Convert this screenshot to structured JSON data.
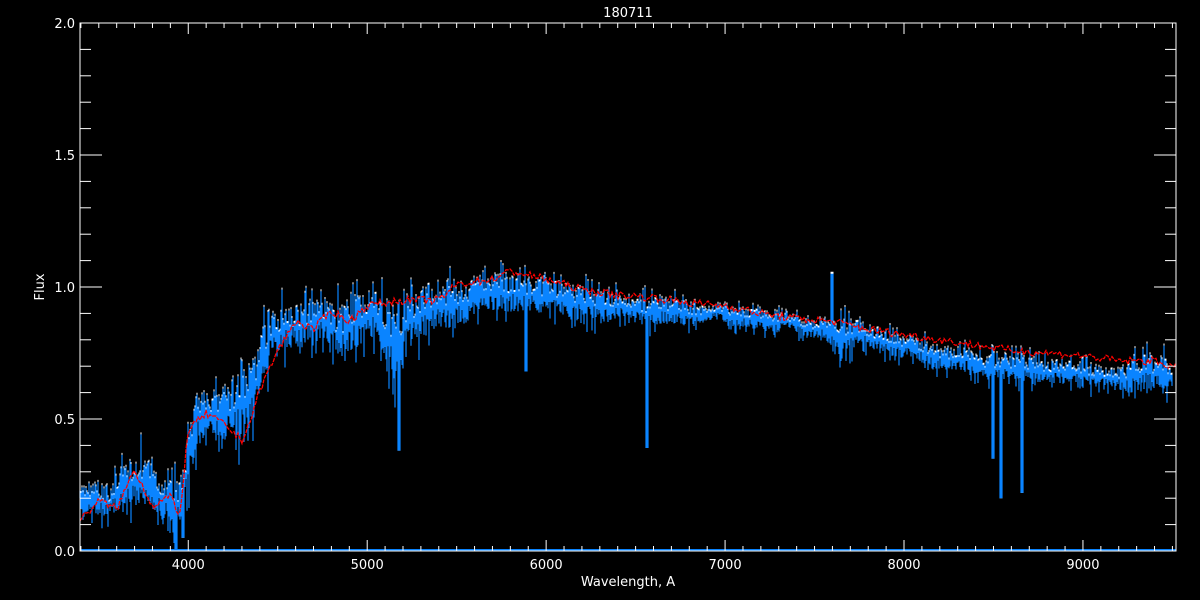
{
  "chart_data": {
    "type": "line",
    "title": "180711",
    "xlabel": "Wavelength, A",
    "ylabel": "Flux",
    "xlim": [
      3395,
      9520
    ],
    "ylim": [
      0.0,
      2.0
    ],
    "xticks": [
      "4000",
      "5000",
      "6000",
      "7000",
      "8000",
      "9000"
    ],
    "yticks": [
      "0.0",
      "0.5",
      "1.0",
      "1.5",
      "2.0"
    ],
    "grid": false,
    "background": "#000000",
    "colors": {
      "observed": "#0a84ff",
      "underlay": "#ffffff",
      "model": "#ff0000",
      "axes": "#ffffff"
    },
    "series": [
      {
        "role": "model",
        "style": "dashed",
        "x": [
          3400,
          3500,
          3600,
          3700,
          3800,
          3900,
          3950,
          4000,
          4100,
          4200,
          4300,
          4350,
          4400,
          4500,
          4600,
          4700,
          4800,
          4900,
          5000,
          5200,
          5400,
          5500,
          5700,
          5800,
          6000,
          6200,
          6400,
          6600,
          6800,
          7000,
          7200,
          7400,
          7600,
          7800,
          8000,
          8200,
          8400,
          8600,
          8800,
          9000,
          9200,
          9400,
          9500
        ],
        "y": [
          0.12,
          0.19,
          0.16,
          0.31,
          0.17,
          0.21,
          0.12,
          0.46,
          0.52,
          0.48,
          0.42,
          0.5,
          0.61,
          0.76,
          0.87,
          0.84,
          0.91,
          0.87,
          0.93,
          0.95,
          0.95,
          1.01,
          1.03,
          1.06,
          1.03,
          0.99,
          0.97,
          0.96,
          0.94,
          0.93,
          0.9,
          0.88,
          0.87,
          0.84,
          0.82,
          0.8,
          0.78,
          0.76,
          0.75,
          0.74,
          0.72,
          0.72,
          0.7
        ]
      },
      {
        "role": "observed",
        "x": [
          3450,
          3550,
          3650,
          3750,
          3850,
          3950,
          4050,
          4150,
          4250,
          4350,
          4450,
          4550,
          4650,
          4750,
          4850,
          4950,
          5050,
          5150,
          5250,
          5350,
          5450,
          5550,
          5650,
          5750,
          5850,
          5950,
          6050,
          6150,
          6250,
          6350,
          6450,
          6550,
          6650,
          6750,
          6850,
          6950,
          7050,
          7150,
          7250,
          7350,
          7450,
          7550,
          7650,
          7750,
          7850,
          7950,
          8050,
          8150,
          8250,
          8350,
          8450,
          8550,
          8650,
          8750,
          8850,
          8950,
          9050,
          9150,
          9250,
          9350,
          9450
        ],
        "y_low": [
          0.1,
          0.08,
          0.1,
          0.1,
          0.08,
          0.0,
          0.3,
          0.35,
          0.3,
          0.35,
          0.6,
          0.7,
          0.7,
          0.75,
          0.6,
          0.7,
          0.75,
          0.5,
          0.7,
          0.75,
          0.75,
          0.8,
          0.85,
          0.85,
          0.85,
          0.85,
          0.85,
          0.82,
          0.82,
          0.82,
          0.85,
          0.8,
          0.82,
          0.82,
          0.82,
          0.85,
          0.82,
          0.82,
          0.8,
          0.82,
          0.78,
          0.78,
          0.65,
          0.75,
          0.72,
          0.7,
          0.7,
          0.65,
          0.65,
          0.65,
          0.6,
          0.6,
          0.6,
          0.6,
          0.6,
          0.6,
          0.58,
          0.58,
          0.55,
          0.55,
          0.55
        ],
        "y_high": [
          0.3,
          0.28,
          0.4,
          0.45,
          0.3,
          0.35,
          0.7,
          0.65,
          0.75,
          0.8,
          1.0,
          1.0,
          1.0,
          1.0,
          1.02,
          1.05,
          1.05,
          1.05,
          1.05,
          1.08,
          1.1,
          1.08,
          1.1,
          1.1,
          1.1,
          1.08,
          1.07,
          1.06,
          1.04,
          1.02,
          1.0,
          1.0,
          1.0,
          0.98,
          0.96,
          0.96,
          0.95,
          0.94,
          0.93,
          0.92,
          0.9,
          0.9,
          0.95,
          0.9,
          0.88,
          0.85,
          0.84,
          0.82,
          0.8,
          0.8,
          0.78,
          0.78,
          0.78,
          0.76,
          0.75,
          0.75,
          0.74,
          0.72,
          0.75,
          0.8,
          0.78
        ]
      }
    ],
    "spectral_features": [
      {
        "x": 3933,
        "y": 0.0
      },
      {
        "x": 3968,
        "y": 0.05
      },
      {
        "x": 5175,
        "y": 0.38
      },
      {
        "x": 5890,
        "y": 0.68
      },
      {
        "x": 6563,
        "y": 0.39
      },
      {
        "x": 7600,
        "y": 1.05
      },
      {
        "x": 8498,
        "y": 0.35
      },
      {
        "x": 8542,
        "y": 0.2
      },
      {
        "x": 8662,
        "y": 0.22
      }
    ]
  }
}
